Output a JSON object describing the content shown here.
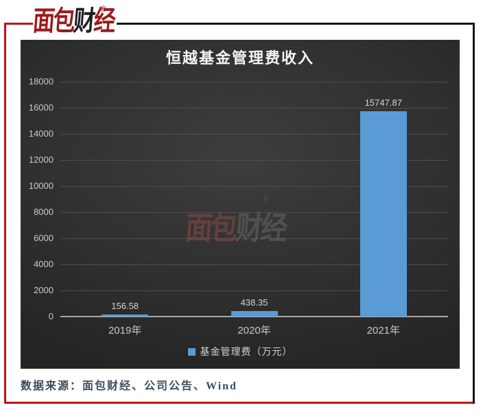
{
  "brand": {
    "logo_text_part1": "面包",
    "logo_text_part2": "财",
    "logo_text_part3": "经",
    "registered_mark": "®"
  },
  "watermark": {
    "text_part1": "面包",
    "text_part2": "财经",
    "registered_mark": "®"
  },
  "chart_data": {
    "type": "bar",
    "title": "恒越基金管理费收入",
    "categories": [
      "2019年",
      "2020年",
      "2021年"
    ],
    "series": [
      {
        "name": "基金管理费（万元）",
        "values": [
          156.58,
          438.35,
          15747.87
        ],
        "color": "#5B9BD5"
      }
    ],
    "data_labels": [
      "156.58",
      "438.35",
      "15747.87"
    ],
    "ylim": [
      0,
      18000
    ],
    "ytick_interval": 2000,
    "yticks": [
      0,
      2000,
      4000,
      6000,
      8000,
      10000,
      12000,
      14000,
      16000,
      18000
    ],
    "grid": true,
    "legend_position": "bottom",
    "background": "dark"
  },
  "footer": {
    "source_text": "数据来源：面包财经、公司公告、Wind"
  },
  "colors": {
    "bar": "#5B9BD5",
    "gridline": "#4e4e4e",
    "axis_line": "#a8a8a8",
    "frame_red": "#C01018",
    "frame_black": "#141414",
    "logo_red": "#9A1B1E",
    "source_text": "#3d4c5c"
  }
}
